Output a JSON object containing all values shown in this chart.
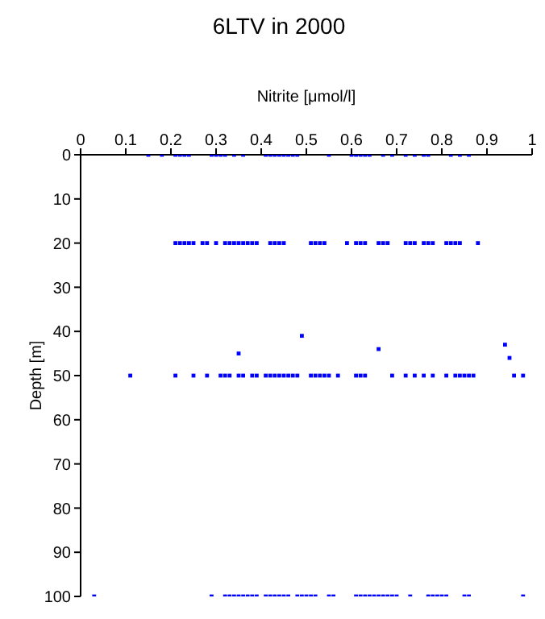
{
  "chart_data": {
    "type": "scatter",
    "title": "6LTV in 2000",
    "xlabel": "Nitrite [μmol/l]",
    "ylabel": "Depth [m]",
    "x": [
      0.15,
      0.18,
      0.21,
      0.22,
      0.23,
      0.24,
      0.29,
      0.3,
      0.31,
      0.32,
      0.34,
      0.36,
      0.41,
      0.42,
      0.43,
      0.44,
      0.45,
      0.46,
      0.47,
      0.48,
      0.55,
      0.6,
      0.61,
      0.62,
      0.63,
      0.64,
      0.67,
      0.69,
      0.72,
      0.74,
      0.76,
      0.77,
      0.82,
      0.84,
      0.86,
      0.21,
      0.22,
      0.23,
      0.24,
      0.25,
      0.27,
      0.28,
      0.3,
      0.32,
      0.33,
      0.34,
      0.35,
      0.36,
      0.37,
      0.38,
      0.39,
      0.42,
      0.43,
      0.44,
      0.45,
      0.51,
      0.52,
      0.53,
      0.54,
      0.59,
      0.61,
      0.62,
      0.63,
      0.66,
      0.67,
      0.68,
      0.72,
      0.73,
      0.74,
      0.76,
      0.77,
      0.78,
      0.81,
      0.82,
      0.83,
      0.84,
      0.88,
      0.11,
      0.21,
      0.25,
      0.28,
      0.31,
      0.32,
      0.33,
      0.35,
      0.36,
      0.38,
      0.39,
      0.41,
      0.42,
      0.43,
      0.44,
      0.45,
      0.46,
      0.47,
      0.48,
      0.51,
      0.52,
      0.53,
      0.54,
      0.55,
      0.57,
      0.61,
      0.62,
      0.63,
      0.69,
      0.72,
      0.74,
      0.76,
      0.78,
      0.81,
      0.83,
      0.84,
      0.85,
      0.86,
      0.87,
      0.96,
      0.98,
      0.35,
      0.49,
      0.66,
      0.94,
      0.95,
      0.03,
      0.29,
      0.32,
      0.33,
      0.34,
      0.35,
      0.36,
      0.37,
      0.38,
      0.39,
      0.41,
      0.42,
      0.43,
      0.44,
      0.45,
      0.46,
      0.48,
      0.49,
      0.5,
      0.51,
      0.52,
      0.55,
      0.56,
      0.61,
      0.62,
      0.63,
      0.64,
      0.65,
      0.66,
      0.67,
      0.68,
      0.69,
      0.7,
      0.73,
      0.77,
      0.78,
      0.79,
      0.8,
      0.81,
      0.85,
      0.86,
      0.98
    ],
    "values": [
      0,
      0,
      0,
      0,
      0,
      0,
      0,
      0,
      0,
      0,
      0,
      0,
      0,
      0,
      0,
      0,
      0,
      0,
      0,
      0,
      0,
      0,
      0,
      0,
      0,
      0,
      0,
      0,
      0,
      0,
      0,
      0,
      0,
      0,
      0,
      20,
      20,
      20,
      20,
      20,
      20,
      20,
      20,
      20,
      20,
      20,
      20,
      20,
      20,
      20,
      20,
      20,
      20,
      20,
      20,
      20,
      20,
      20,
      20,
      20,
      20,
      20,
      20,
      20,
      20,
      20,
      20,
      20,
      20,
      20,
      20,
      20,
      20,
      20,
      20,
      20,
      20,
      50,
      50,
      50,
      50,
      50,
      50,
      50,
      50,
      50,
      50,
      50,
      50,
      50,
      50,
      50,
      50,
      50,
      50,
      50,
      50,
      50,
      50,
      50,
      50,
      50,
      50,
      50,
      50,
      50,
      50,
      50,
      50,
      50,
      50,
      50,
      50,
      50,
      50,
      50,
      50,
      50,
      45,
      41,
      44,
      43,
      46,
      100,
      100,
      100,
      100,
      100,
      100,
      100,
      100,
      100,
      100,
      100,
      100,
      100,
      100,
      100,
      100,
      100,
      100,
      100,
      100,
      100,
      100,
      100,
      100,
      100,
      100,
      100,
      100,
      100,
      100,
      100,
      100,
      100,
      100,
      100,
      100,
      100,
      100,
      100,
      100,
      100,
      100
    ],
    "color": "#0000ff",
    "marker": "square",
    "xlim": [
      0,
      1
    ],
    "xticks": [
      0,
      0.1,
      0.2,
      0.3,
      0.4,
      0.5,
      0.6,
      0.7,
      0.8,
      0.9,
      1
    ],
    "ylim": [
      100,
      0
    ],
    "yticks": [
      0,
      10,
      20,
      30,
      40,
      50,
      60,
      70,
      80,
      90,
      100
    ]
  }
}
